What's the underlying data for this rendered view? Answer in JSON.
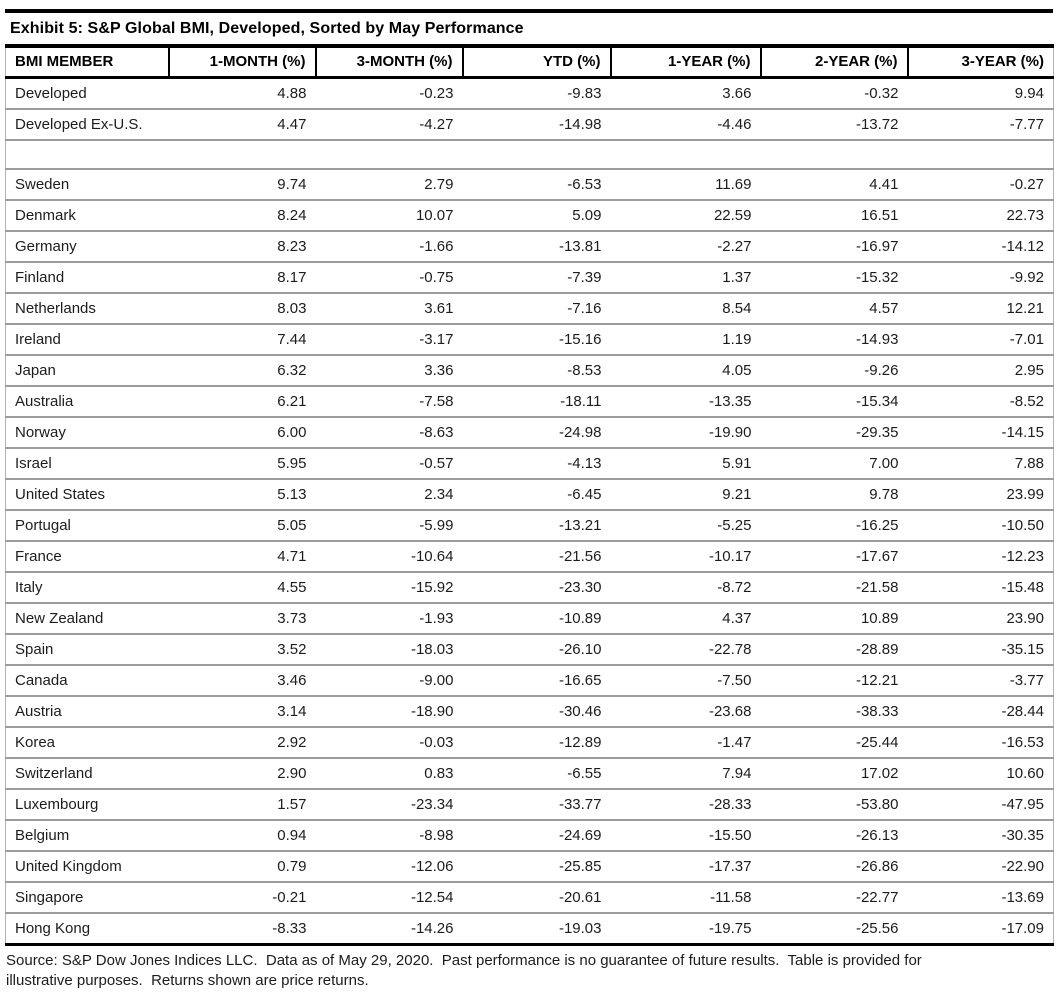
{
  "title": "Exhibit 5: S&P Global BMI, Developed, Sorted by May Performance",
  "table": {
    "columns": [
      "BMI MEMBER",
      "1-MONTH (%)",
      "3-MONTH (%)",
      "YTD (%)",
      "1-YEAR (%)",
      "2-YEAR (%)",
      "3-YEAR (%)"
    ],
    "rows": [
      {
        "member": "Developed",
        "values": [
          "4.88",
          "-0.23",
          "-9.83",
          "3.66",
          "-0.32",
          "9.94"
        ]
      },
      {
        "member": "Developed Ex-U.S.",
        "values": [
          "4.47",
          "-4.27",
          "-14.98",
          "-4.46",
          "-13.72",
          "-7.77"
        ]
      },
      {
        "member": "",
        "values": [
          "",
          "",
          "",
          "",
          "",
          ""
        ],
        "spacer": true
      },
      {
        "member": "Sweden",
        "values": [
          "9.74",
          "2.79",
          "-6.53",
          "11.69",
          "4.41",
          "-0.27"
        ]
      },
      {
        "member": "Denmark",
        "values": [
          "8.24",
          "10.07",
          "5.09",
          "22.59",
          "16.51",
          "22.73"
        ]
      },
      {
        "member": "Germany",
        "values": [
          "8.23",
          "-1.66",
          "-13.81",
          "-2.27",
          "-16.97",
          "-14.12"
        ]
      },
      {
        "member": "Finland",
        "values": [
          "8.17",
          "-0.75",
          "-7.39",
          "1.37",
          "-15.32",
          "-9.92"
        ]
      },
      {
        "member": "Netherlands",
        "values": [
          "8.03",
          "3.61",
          "-7.16",
          "8.54",
          "4.57",
          "12.21"
        ]
      },
      {
        "member": "Ireland",
        "values": [
          "7.44",
          "-3.17",
          "-15.16",
          "1.19",
          "-14.93",
          "-7.01"
        ]
      },
      {
        "member": "Japan",
        "values": [
          "6.32",
          "3.36",
          "-8.53",
          "4.05",
          "-9.26",
          "2.95"
        ]
      },
      {
        "member": "Australia",
        "values": [
          "6.21",
          "-7.58",
          "-18.11",
          "-13.35",
          "-15.34",
          "-8.52"
        ]
      },
      {
        "member": "Norway",
        "values": [
          "6.00",
          "-8.63",
          "-24.98",
          "-19.90",
          "-29.35",
          "-14.15"
        ]
      },
      {
        "member": "Israel",
        "values": [
          "5.95",
          "-0.57",
          "-4.13",
          "5.91",
          "7.00",
          "7.88"
        ]
      },
      {
        "member": "United States",
        "values": [
          "5.13",
          "2.34",
          "-6.45",
          "9.21",
          "9.78",
          "23.99"
        ]
      },
      {
        "member": "Portugal",
        "values": [
          "5.05",
          "-5.99",
          "-13.21",
          "-5.25",
          "-16.25",
          "-10.50"
        ]
      },
      {
        "member": "France",
        "values": [
          "4.71",
          "-10.64",
          "-21.56",
          "-10.17",
          "-17.67",
          "-12.23"
        ]
      },
      {
        "member": "Italy",
        "values": [
          "4.55",
          "-15.92",
          "-23.30",
          "-8.72",
          "-21.58",
          "-15.48"
        ]
      },
      {
        "member": "New Zealand",
        "values": [
          "3.73",
          "-1.93",
          "-10.89",
          "4.37",
          "10.89",
          "23.90"
        ]
      },
      {
        "member": "Spain",
        "values": [
          "3.52",
          "-18.03",
          "-26.10",
          "-22.78",
          "-28.89",
          "-35.15"
        ]
      },
      {
        "member": "Canada",
        "values": [
          "3.46",
          "-9.00",
          "-16.65",
          "-7.50",
          "-12.21",
          "-3.77"
        ]
      },
      {
        "member": "Austria",
        "values": [
          "3.14",
          "-18.90",
          "-30.46",
          "-23.68",
          "-38.33",
          "-28.44"
        ]
      },
      {
        "member": "Korea",
        "values": [
          "2.92",
          "-0.03",
          "-12.89",
          "-1.47",
          "-25.44",
          "-16.53"
        ]
      },
      {
        "member": "Switzerland",
        "values": [
          "2.90",
          "0.83",
          "-6.55",
          "7.94",
          "17.02",
          "10.60"
        ]
      },
      {
        "member": "Luxembourg",
        "values": [
          "1.57",
          "-23.34",
          "-33.77",
          "-28.33",
          "-53.80",
          "-47.95"
        ]
      },
      {
        "member": "Belgium",
        "values": [
          "0.94",
          "-8.98",
          "-24.69",
          "-15.50",
          "-26.13",
          "-30.35"
        ]
      },
      {
        "member": "United Kingdom",
        "values": [
          "0.79",
          "-12.06",
          "-25.85",
          "-17.37",
          "-26.86",
          "-22.90"
        ]
      },
      {
        "member": "Singapore",
        "values": [
          "-0.21",
          "-12.54",
          "-20.61",
          "-11.58",
          "-22.77",
          "-13.69"
        ]
      },
      {
        "member": "Hong Kong",
        "values": [
          "-8.33",
          "-14.26",
          "-19.03",
          "-19.75",
          "-25.56",
          "-17.09"
        ]
      }
    ]
  },
  "footer": {
    "lines": [
      "Source: S&P Dow Jones Indices LLC.  Data as of May 29, 2020.  Past performance is no guarantee of future results.  Table is provided for",
      "illustrative purposes.  Returns shown are price returns."
    ]
  },
  "colors": {
    "background": "#ffffff",
    "text": "#1c1c1c",
    "header_text": "#000000",
    "heavy_rule": "#000000",
    "row_divider": "#9c9c9c",
    "side_border": "#b3b3b3"
  }
}
